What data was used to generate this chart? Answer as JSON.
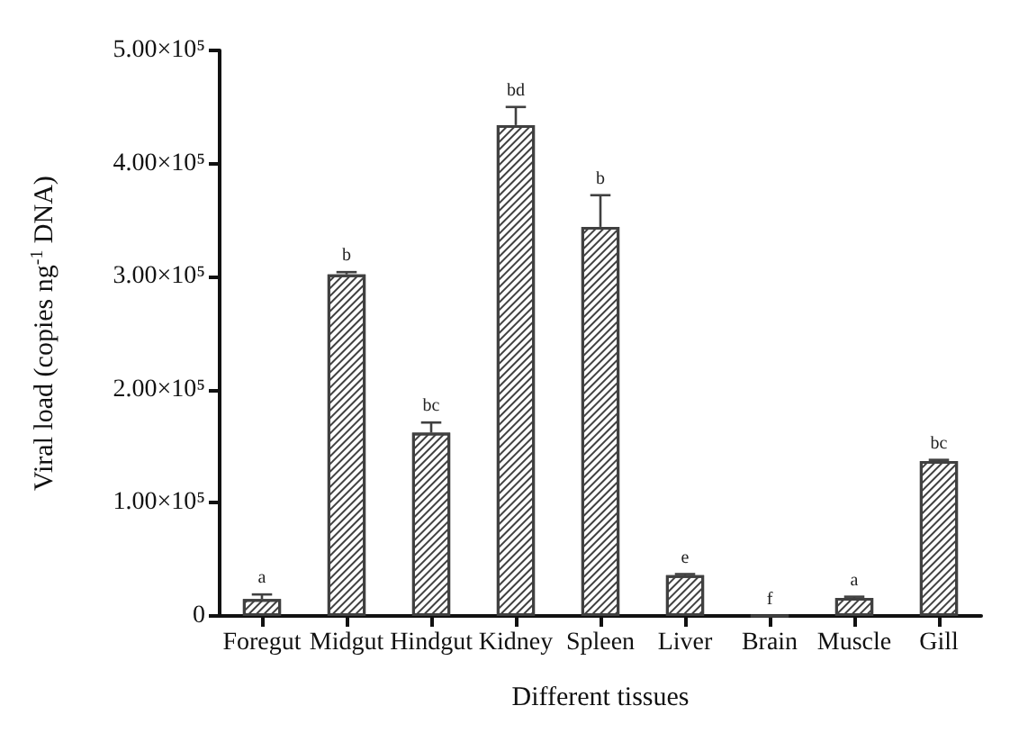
{
  "chart_data": {
    "type": "bar",
    "xlabel": "Different tissues",
    "ylabel": "Viral load (copies ng$^{-1}$ DNA)",
    "categories": [
      "Foregut",
      "Midgut",
      "Hindgut",
      "Kidney",
      "Spleen",
      "Liver",
      "Brain",
      "Muscle",
      "Gill"
    ],
    "values": [
      15000,
      302000,
      162000,
      434000,
      344000,
      36000,
      0,
      16000,
      137000
    ],
    "errors": [
      [
        15000,
        19000
      ],
      [
        302000,
        304000
      ],
      [
        162000,
        171000
      ],
      [
        434000,
        450000
      ],
      [
        344000,
        372000
      ],
      [
        36000,
        37000
      ],
      null,
      [
        16000,
        17000
      ],
      [
        137000,
        138000
      ]
    ],
    "color": "#404040",
    "ylim": [
      0,
      500000
    ],
    "yticks": [
      0,
      {
        "value": 100000,
        "label": "1.00×10⁵"
      },
      {
        "value": 200000,
        "label": "2.00×10⁵"
      },
      {
        "value": 300000,
        "label": "3.00×10⁵"
      },
      {
        "value": 400000,
        "label": "4.00×10⁵"
      },
      {
        "value": 500000,
        "label": "5.00×10⁵"
      }
    ],
    "grid": false,
    "annotations": [
      {
        "text": "a",
        "x": "Foregut",
        "y": 19000
      },
      {
        "text": "b",
        "x": "Midgut",
        "y": 304000
      },
      {
        "text": "bc",
        "x": "Hindgut",
        "y": 171000
      },
      {
        "text": "bd",
        "x": "Kidney",
        "y": 450000
      },
      {
        "text": "b",
        "x": "Spleen",
        "y": 372000
      },
      {
        "text": "e",
        "x": "Liver",
        "y": 37000
      },
      {
        "text": "f",
        "x": "Brain",
        "y": 0
      },
      {
        "text": "a",
        "x": "Muscle",
        "y": 17000
      },
      {
        "text": "bc",
        "x": "Gill",
        "y": 138000
      }
    ]
  }
}
